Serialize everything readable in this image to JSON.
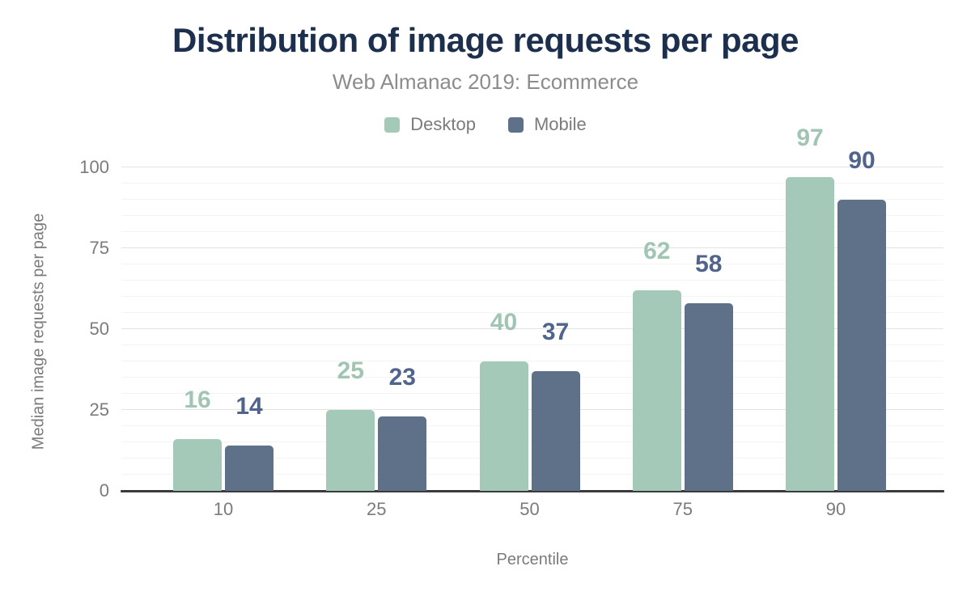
{
  "chart_data": {
    "type": "bar",
    "title": "Distribution of image requests per page",
    "subtitle": "Web Almanac 2019: Ecommerce",
    "categories": [
      "10",
      "25",
      "50",
      "75",
      "90"
    ],
    "series": [
      {
        "name": "Desktop",
        "values": [
          16,
          25,
          40,
          62,
          97
        ],
        "color": "#a5c9b9",
        "label_color": "#a0c6b3"
      },
      {
        "name": "Mobile",
        "values": [
          14,
          23,
          37,
          58,
          90
        ],
        "color": "#5f7089",
        "label_color": "#51658c"
      }
    ],
    "xlabel": "Percentile",
    "ylabel": "Median image requests per page",
    "ylim": [
      0,
      100
    ],
    "yticks": [
      0,
      25,
      50,
      75,
      100
    ],
    "grid": {
      "minor_step": 5,
      "major_step": 25,
      "visible": true
    },
    "legend_position": "top",
    "data_labels": true
  },
  "palette": {
    "title_text": "#1c304d",
    "subtitle_text": "#8c8c8c",
    "axis_text": "#7b7b7b",
    "axis_line": "#3b3b3d",
    "grid_major": "#e3e3e3",
    "grid_minor": "#f4f4f4",
    "background": "#ffffff"
  }
}
